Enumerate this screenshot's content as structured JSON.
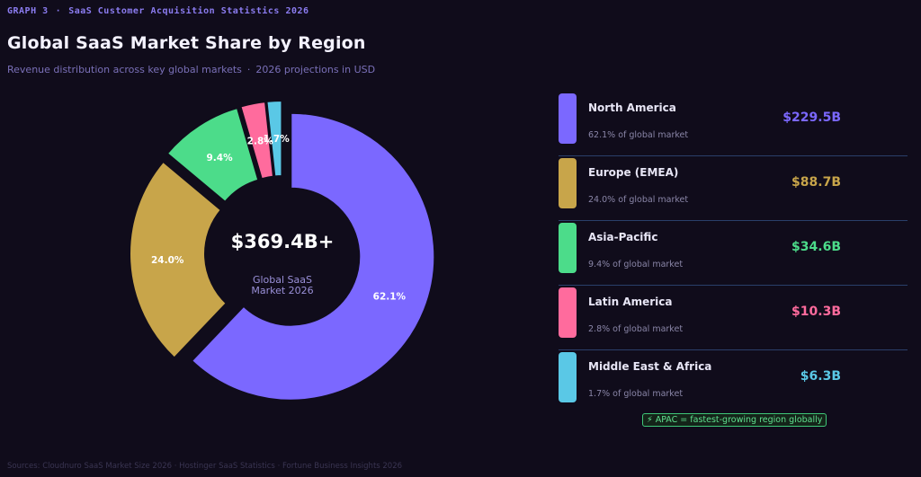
{
  "header": {
    "graph_label": "GRAPH 3",
    "separator": "·",
    "series_title": "SaaS Customer Acquisition Statistics 2026",
    "title": "Global SaaS Market Share by Region",
    "subtitle_left": "Revenue distribution across key global markets",
    "subtitle_right": "2026 projections in USD"
  },
  "center": {
    "value": "$369.4B+",
    "line1": "Global SaaS",
    "line2": "Market 2026"
  },
  "legend": [
    {
      "name": "North America",
      "share_text": "62.1% of global market",
      "value": "$229.5B",
      "color": "#7b68ff"
    },
    {
      "name": "Europe (EMEA)",
      "share_text": "24.0% of global market",
      "value": "$88.7B",
      "color": "#c8a54a"
    },
    {
      "name": "Asia-Pacific",
      "share_text": "9.4% of global market",
      "value": "$34.6B",
      "color": "#4cdc8a"
    },
    {
      "name": "Latin America",
      "share_text": "2.8% of global market",
      "value": "$10.3B",
      "color": "#ff6b9d"
    },
    {
      "name": "Middle East & Africa",
      "share_text": "1.7% of global market",
      "value": "$6.3B",
      "color": "#5ac8e6"
    }
  ],
  "badge": "⚡ APAC = fastest-growing region globally",
  "sources": "Sources: Cloudnuro SaaS Market Size 2026 · Hostinger SaaS Statistics · Fortune Business Insights 2026",
  "chart_data": {
    "type": "pie",
    "title": "Global SaaS Market Share by Region",
    "categories": [
      "North America",
      "Europe (EMEA)",
      "Asia-Pacific",
      "Latin America",
      "Middle East & Africa"
    ],
    "values": [
      62.1,
      24.0,
      9.4,
      2.8,
      1.7
    ],
    "labels": [
      "62.1%",
      "24.0%",
      "9.4%",
      "2.8%",
      "1.7%"
    ],
    "amounts_usd_billion": [
      229.5,
      88.7,
      34.6,
      10.3,
      6.3
    ],
    "colors": [
      "#7b68ff",
      "#c8a54a",
      "#4cdc8a",
      "#ff6b9d",
      "#5ac8e6"
    ],
    "legend": "right",
    "donut": true
  }
}
